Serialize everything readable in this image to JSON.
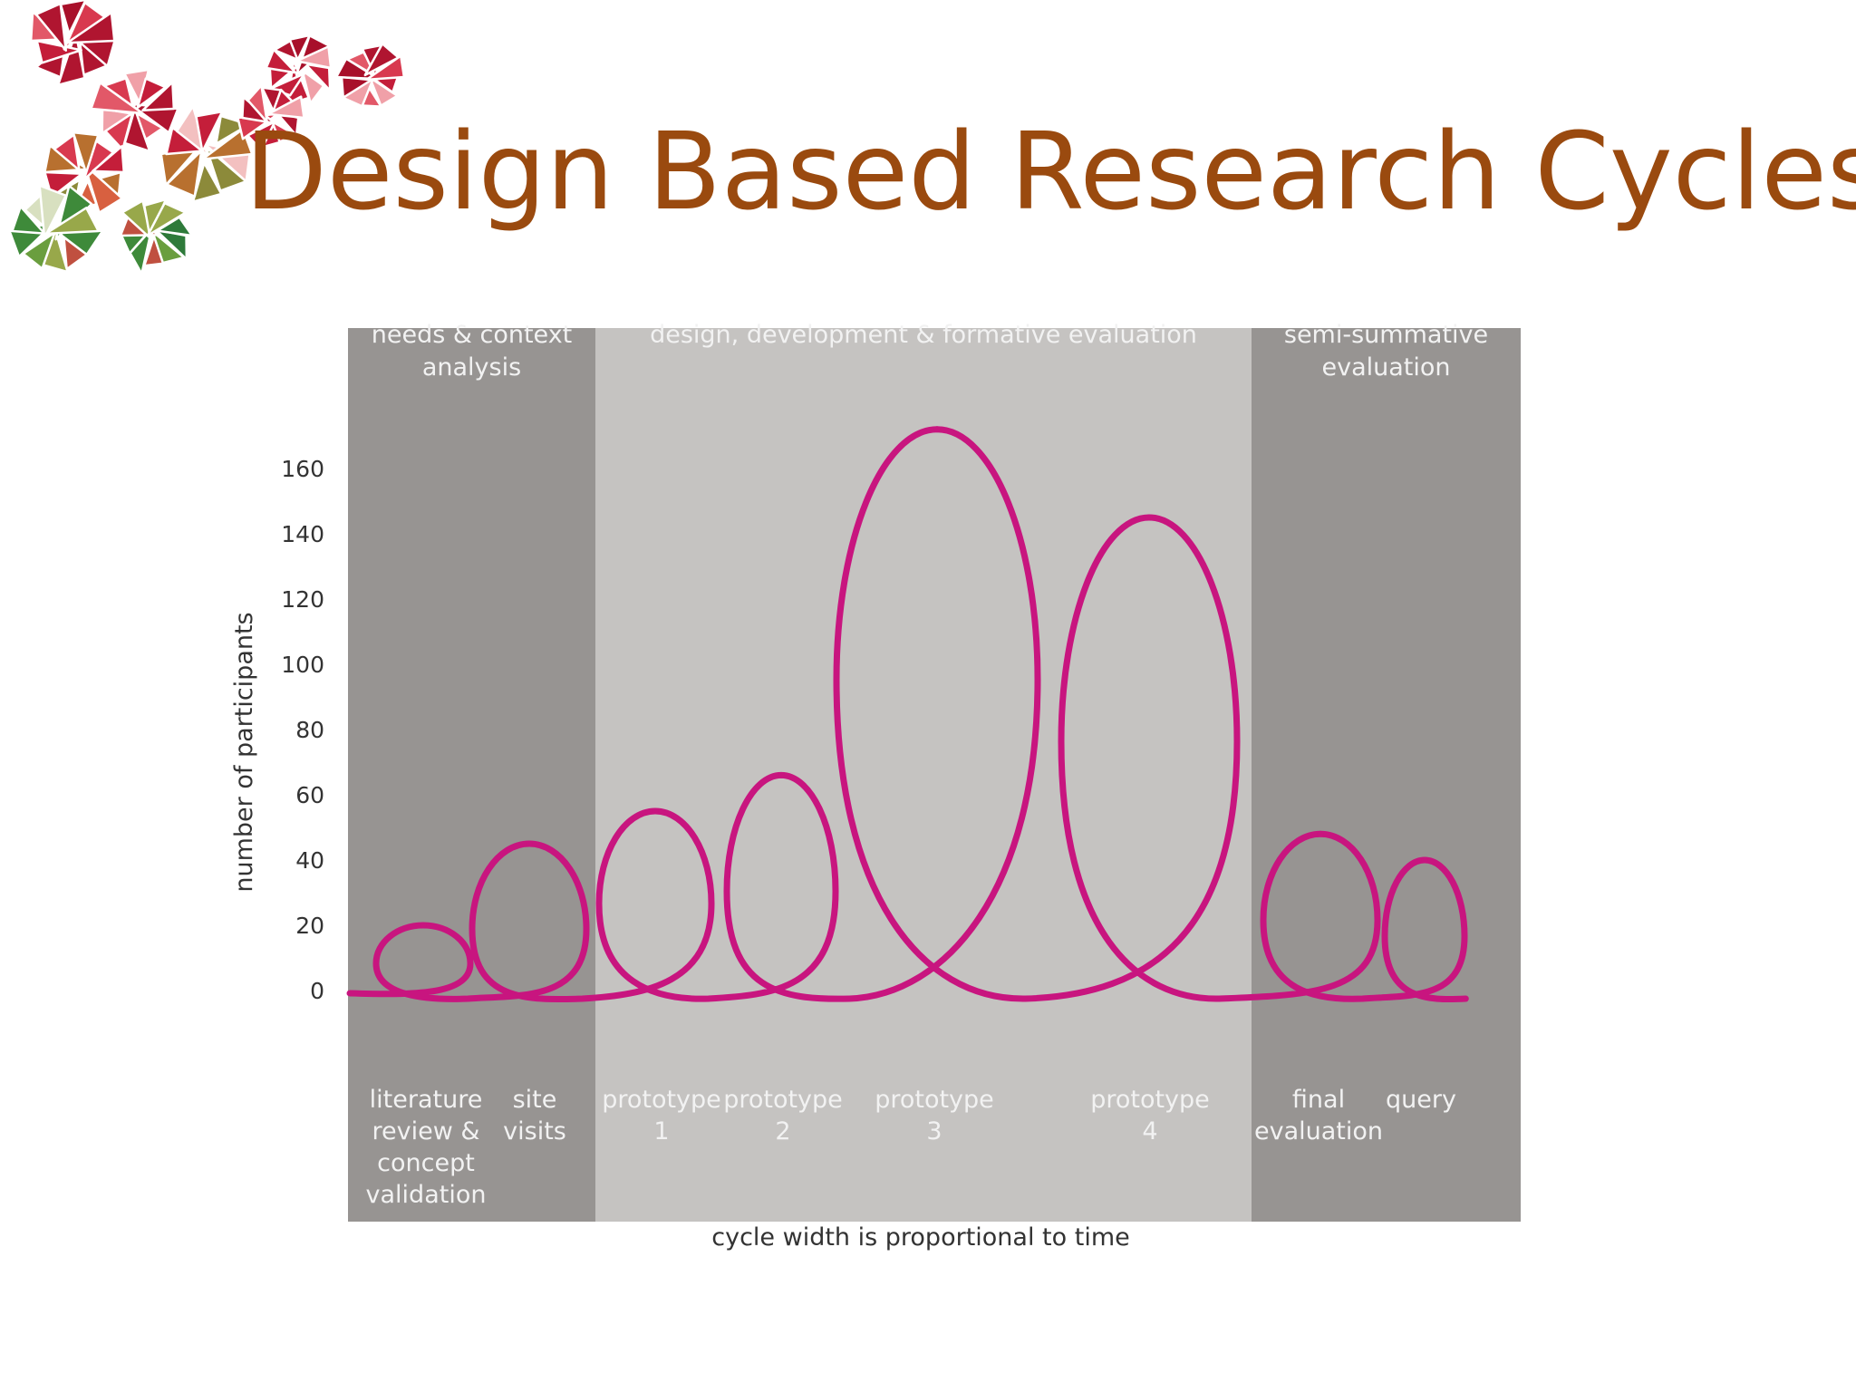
{
  "slide": {
    "title": "Design Based Research Cycles"
  },
  "colors": {
    "title": "#9a4a0f",
    "phase_dark": "#979492",
    "phase_light": "#c5c3c1",
    "loop": "#c8157f",
    "logo_red": "#c41e3a",
    "logo_green": "#3e8a3a"
  },
  "icons": {
    "logo": "geometric-triangle-mosaic-logo-icon"
  },
  "chart_data": {
    "type": "line",
    "subtype": "loop-diagram",
    "title": "",
    "xlabel": "cycle width is proportional to time",
    "ylabel": "number of participants",
    "yticks": [
      0,
      20,
      40,
      60,
      80,
      100,
      120,
      140,
      160
    ],
    "ylim": [
      0,
      180
    ],
    "grid": false,
    "phases": [
      {
        "name": "needs & context analysis",
        "lines": [
          "needs & context",
          "analysis"
        ],
        "tone": "dark"
      },
      {
        "name": "design, development & formative evaluation",
        "lines": [
          "design, development & formative evaluation"
        ],
        "tone": "light"
      },
      {
        "name": "semi-summative evaluation",
        "lines": [
          "semi-summative",
          "evaluation"
        ],
        "tone": "dark"
      }
    ],
    "cycles": [
      {
        "lines": [
          "literature",
          "review &",
          "concept",
          "validation"
        ],
        "phase": 0,
        "participants": 20
      },
      {
        "lines": [
          "site",
          "visits"
        ],
        "phase": 0,
        "participants": 45
      },
      {
        "lines": [
          "prototype",
          "1"
        ],
        "phase": 1,
        "participants": 55
      },
      {
        "lines": [
          "prototype",
          "2"
        ],
        "phase": 1,
        "participants": 66
      },
      {
        "lines": [
          "prototype",
          "3"
        ],
        "phase": 1,
        "participants": 172
      },
      {
        "lines": [
          "prototype",
          "4"
        ],
        "phase": 1,
        "participants": 145
      },
      {
        "lines": [
          "final",
          "evaluation"
        ],
        "phase": 2,
        "participants": 48
      },
      {
        "lines": [
          "query"
        ],
        "phase": 2,
        "participants": 40
      }
    ]
  }
}
